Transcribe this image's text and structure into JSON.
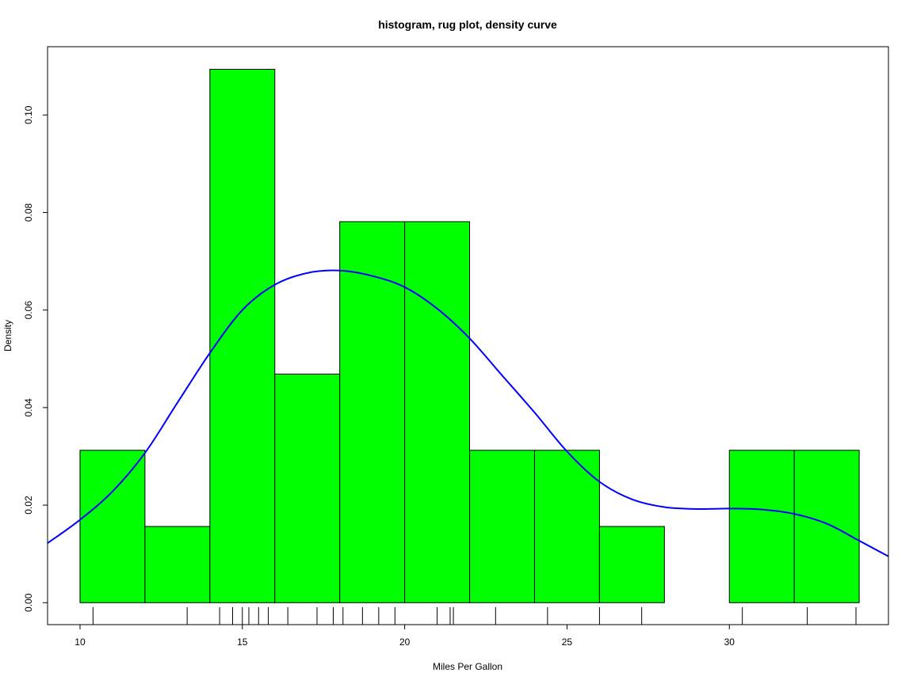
{
  "chart_data": {
    "type": "bar",
    "title": "histogram, rug plot, density curve",
    "xlabel": "Miles Per Gallon",
    "ylabel": "Density",
    "xlim": [
      9.0,
      34.9
    ],
    "ylim": [
      -0.0045,
      0.114
    ],
    "x_ticks": [
      "10",
      "15",
      "20",
      "25",
      "30"
    ],
    "y_ticks": [
      "0.00",
      "0.02",
      "0.04",
      "0.06",
      "0.08",
      "0.10"
    ],
    "bin_edges": [
      10,
      12,
      14,
      16,
      18,
      20,
      22,
      24,
      26,
      28,
      30,
      32,
      34
    ],
    "values": [
      0.03125,
      0.015625,
      0.109375,
      0.046875,
      0.078125,
      0.078125,
      0.03125,
      0.03125,
      0.015625,
      0.0,
      0.03125,
      0.03125
    ],
    "bar_color": "#00FF00",
    "rug": [
      10.4,
      13.3,
      14.3,
      14.7,
      15.0,
      15.2,
      15.5,
      15.8,
      16.4,
      17.3,
      17.8,
      18.1,
      18.7,
      19.2,
      19.7,
      21.0,
      21.4,
      21.5,
      22.8,
      24.4,
      26.0,
      27.3,
      30.4,
      32.4,
      33.9
    ],
    "density_color": "#0000FF",
    "density": [
      [
        9.0,
        0.0122
      ],
      [
        10.0,
        0.017
      ],
      [
        11.0,
        0.0228
      ],
      [
        12.0,
        0.0307
      ],
      [
        13.0,
        0.041
      ],
      [
        14.0,
        0.0512
      ],
      [
        15.0,
        0.06
      ],
      [
        16.0,
        0.0652
      ],
      [
        17.0,
        0.0676
      ],
      [
        18.0,
        0.0681
      ],
      [
        19.0,
        0.067
      ],
      [
        20.0,
        0.0647
      ],
      [
        21.0,
        0.0603
      ],
      [
        22.0,
        0.0542
      ],
      [
        23.0,
        0.0466
      ],
      [
        24.0,
        0.039
      ],
      [
        25.0,
        0.031
      ],
      [
        26.0,
        0.0248
      ],
      [
        27.0,
        0.0212
      ],
      [
        28.0,
        0.0196
      ],
      [
        29.0,
        0.0192
      ],
      [
        30.0,
        0.0193
      ],
      [
        31.0,
        0.0191
      ],
      [
        32.0,
        0.0182
      ],
      [
        33.0,
        0.0162
      ],
      [
        34.0,
        0.0127
      ],
      [
        34.9,
        0.0095
      ]
    ]
  }
}
